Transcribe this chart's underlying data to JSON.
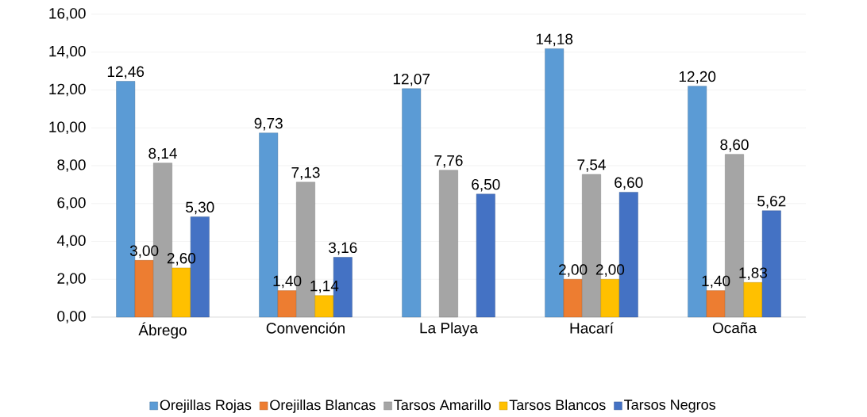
{
  "chart_data": {
    "type": "bar",
    "categories": [
      "Ábrego",
      "Convención",
      "La Playa",
      "Hacarí",
      "Ocaña"
    ],
    "series": [
      {
        "name": "Orejillas Rojas",
        "color": "#5b9bd5",
        "values": [
          12.46,
          9.73,
          12.07,
          14.18,
          12.2
        ],
        "value_labels": [
          "12,46",
          "9,73",
          "12,07",
          "14,18",
          "12,20"
        ]
      },
      {
        "name": "Orejillas Blancas",
        "color": "#ed7d31",
        "values": [
          3.0,
          1.4,
          null,
          2.0,
          1.4
        ],
        "value_labels": [
          "3,00",
          "1,40",
          null,
          "2,00",
          "1,40"
        ]
      },
      {
        "name": "Tarsos Amarillo",
        "color": "#a5a5a5",
        "values": [
          8.14,
          7.13,
          7.76,
          7.54,
          8.6
        ],
        "value_labels": [
          "8,14",
          "7,13",
          "7,76",
          "7,54",
          "8,60"
        ]
      },
      {
        "name": "Tarsos Blancos",
        "color": "#ffc000",
        "values": [
          2.6,
          1.14,
          null,
          2.0,
          1.83
        ],
        "value_labels": [
          "2,60",
          "1,14",
          null,
          "2,00",
          "1,83"
        ]
      },
      {
        "name": "Tarsos Negros",
        "color": "#4472c4",
        "values": [
          5.3,
          3.16,
          6.5,
          6.6,
          5.62
        ],
        "value_labels": [
          "5,30",
          "3,16",
          "6,50",
          "6,60",
          "5,62"
        ]
      }
    ],
    "ylim": [
      0,
      16
    ],
    "yticks": [
      {
        "value": 0,
        "label": "0,00"
      },
      {
        "value": 2,
        "label": "2,00"
      },
      {
        "value": 4,
        "label": "4,00"
      },
      {
        "value": 6,
        "label": "6,00"
      },
      {
        "value": 8,
        "label": "8,00"
      },
      {
        "value": 10,
        "label": "10,00"
      },
      {
        "value": 12,
        "label": "12,00"
      },
      {
        "value": 14,
        "label": "14,00"
      },
      {
        "value": 16,
        "label": "16,00"
      }
    ],
    "grid": "y",
    "legend": "bottom"
  }
}
